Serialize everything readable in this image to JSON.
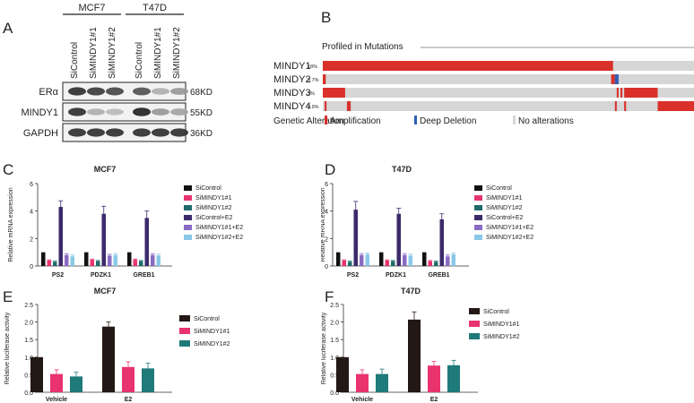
{
  "panels": {
    "A": "A",
    "B": "B",
    "C": "C",
    "D": "D",
    "E": "E",
    "F": "F"
  },
  "blot": {
    "cell_lines": [
      "MCF7",
      "T47D"
    ],
    "lanes": [
      "SiControl",
      "SiMINDY1#1",
      "SiMINDY1#2",
      "SiControl",
      "SiMINDY1#1",
      "SiMINDY1#2"
    ],
    "rows": [
      {
        "protein": "ERα",
        "size": "68KD",
        "intensity": [
          0.9,
          0.85,
          0.8,
          0.75,
          0.35,
          0.45
        ]
      },
      {
        "protein": "MINDY1",
        "size": "55KD",
        "intensity": [
          0.9,
          0.35,
          0.3,
          0.95,
          0.45,
          0.4
        ]
      },
      {
        "protein": "GAPDH",
        "size": "36KD",
        "intensity": [
          0.9,
          0.9,
          0.9,
          0.9,
          0.9,
          0.9
        ]
      }
    ]
  },
  "mutations": {
    "header": "Profiled in Mutations",
    "genes": [
      {
        "name": "MINDY1",
        "pct": "18%"
      },
      {
        "name": "MINDY2",
        "pct": "0.7%"
      },
      {
        "name": "MINDY3",
        "pct": "3%"
      },
      {
        "name": "MINDY4",
        "pct": "2.9%"
      }
    ],
    "legend_title": "Genetic Alteration",
    "legend": [
      {
        "label": "Amplification",
        "color": "#d9302a"
      },
      {
        "label": "Deep Deletion",
        "color": "#2f5fb3"
      },
      {
        "label": "No alterations",
        "color": "#d6d6d6"
      }
    ]
  },
  "chart_data": [
    {
      "panel": "C",
      "type": "bar",
      "title": "MCF7",
      "ylabel": "Relative mRNA expression",
      "categories": [
        "PS2",
        "PDZK1",
        "GREB1"
      ],
      "ylim": [
        0,
        6
      ],
      "yticks": [
        0,
        2,
        4,
        6
      ],
      "series": [
        {
          "name": "SiControl",
          "color": "#111111",
          "values": [
            1,
            1,
            1
          ],
          "err": [
            0,
            0,
            0
          ]
        },
        {
          "name": "SiMINDY1#1",
          "color": "#e8336f",
          "values": [
            0.4,
            0.45,
            0.45
          ],
          "err": [
            0.05,
            0.05,
            0.05
          ]
        },
        {
          "name": "SiMINDY1#2",
          "color": "#1f6b6b",
          "values": [
            0.3,
            0.35,
            0.35
          ],
          "err": [
            0.05,
            0.05,
            0.05
          ]
        },
        {
          "name": "SiControl+E2",
          "color": "#3b2a6b",
          "values": [
            4.3,
            3.8,
            3.5
          ],
          "err": [
            0.45,
            0.55,
            0.5
          ]
        },
        {
          "name": "SiMINDY1#1+E2",
          "color": "#8a6bc4",
          "values": [
            0.8,
            0.75,
            0.8
          ],
          "err": [
            0.1,
            0.1,
            0.1
          ]
        },
        {
          "name": "SiMINDY1#2+E2",
          "color": "#8ac8e8",
          "values": [
            0.7,
            0.8,
            0.75
          ],
          "err": [
            0.1,
            0.1,
            0.1
          ]
        }
      ]
    },
    {
      "panel": "D",
      "type": "bar",
      "title": "T47D",
      "ylabel": "Relative mRNA expression",
      "categories": [
        "PS2",
        "PDZK1",
        "GREB1"
      ],
      "ylim": [
        0,
        6
      ],
      "yticks": [
        0,
        2,
        4,
        6
      ],
      "series": [
        {
          "name": "SiControl",
          "color": "#111111",
          "values": [
            1,
            1,
            1
          ],
          "err": [
            0,
            0,
            0
          ]
        },
        {
          "name": "SiMINDY1#1",
          "color": "#e8336f",
          "values": [
            0.4,
            0.4,
            0.35
          ],
          "err": [
            0.05,
            0.05,
            0.05
          ]
        },
        {
          "name": "SiMINDY1#2",
          "color": "#1f6b6b",
          "values": [
            0.3,
            0.35,
            0.3
          ],
          "err": [
            0.05,
            0.05,
            0.05
          ]
        },
        {
          "name": "SiControl+E2",
          "color": "#3b2a6b",
          "values": [
            4.1,
            3.8,
            3.4
          ],
          "err": [
            0.6,
            0.4,
            0.4
          ]
        },
        {
          "name": "SiMINDY1#1+E2",
          "color": "#8a6bc4",
          "values": [
            0.8,
            0.8,
            0.7
          ],
          "err": [
            0.1,
            0.1,
            0.1
          ]
        },
        {
          "name": "SiMINDY1#2+E2",
          "color": "#8ac8e8",
          "values": [
            0.85,
            0.75,
            0.85
          ],
          "err": [
            0.1,
            0.1,
            0.1
          ]
        }
      ]
    },
    {
      "panel": "E",
      "type": "bar",
      "title": "MCF7",
      "ylabel": "Relative luciferase activity",
      "categories": [
        "Vehicle",
        "E2"
      ],
      "ylim": [
        0,
        2.5
      ],
      "yticks": [
        0,
        0.5,
        1.0,
        1.5,
        2.0,
        2.5
      ],
      "series": [
        {
          "name": "SiControl",
          "color": "#231815",
          "values": [
            1.0,
            1.87
          ],
          "err": [
            0,
            0.13
          ]
        },
        {
          "name": "SiMINDY1#1",
          "color": "#e8336f",
          "values": [
            0.52,
            0.72
          ],
          "err": [
            0.12,
            0.15
          ]
        },
        {
          "name": "SiMINDY1#2",
          "color": "#1f7a7a",
          "values": [
            0.45,
            0.68
          ],
          "err": [
            0.12,
            0.15
          ]
        }
      ]
    },
    {
      "panel": "F",
      "type": "bar",
      "title": "T47D",
      "ylabel": "Relative luciferase activity",
      "categories": [
        "Vehicle",
        "E2"
      ],
      "ylim": [
        0,
        2.5
      ],
      "yticks": [
        0,
        0.5,
        1.0,
        1.5,
        2.0,
        2.5
      ],
      "series": [
        {
          "name": "SiControl",
          "color": "#231815",
          "values": [
            1.0,
            2.07
          ],
          "err": [
            0,
            0.22
          ]
        },
        {
          "name": "SiMINDY1#1",
          "color": "#e8336f",
          "values": [
            0.52,
            0.76
          ],
          "err": [
            0.12,
            0.12
          ]
        },
        {
          "name": "SiMINDY1#2",
          "color": "#1f7a7a",
          "values": [
            0.52,
            0.77
          ],
          "err": [
            0.14,
            0.14
          ]
        }
      ]
    }
  ]
}
